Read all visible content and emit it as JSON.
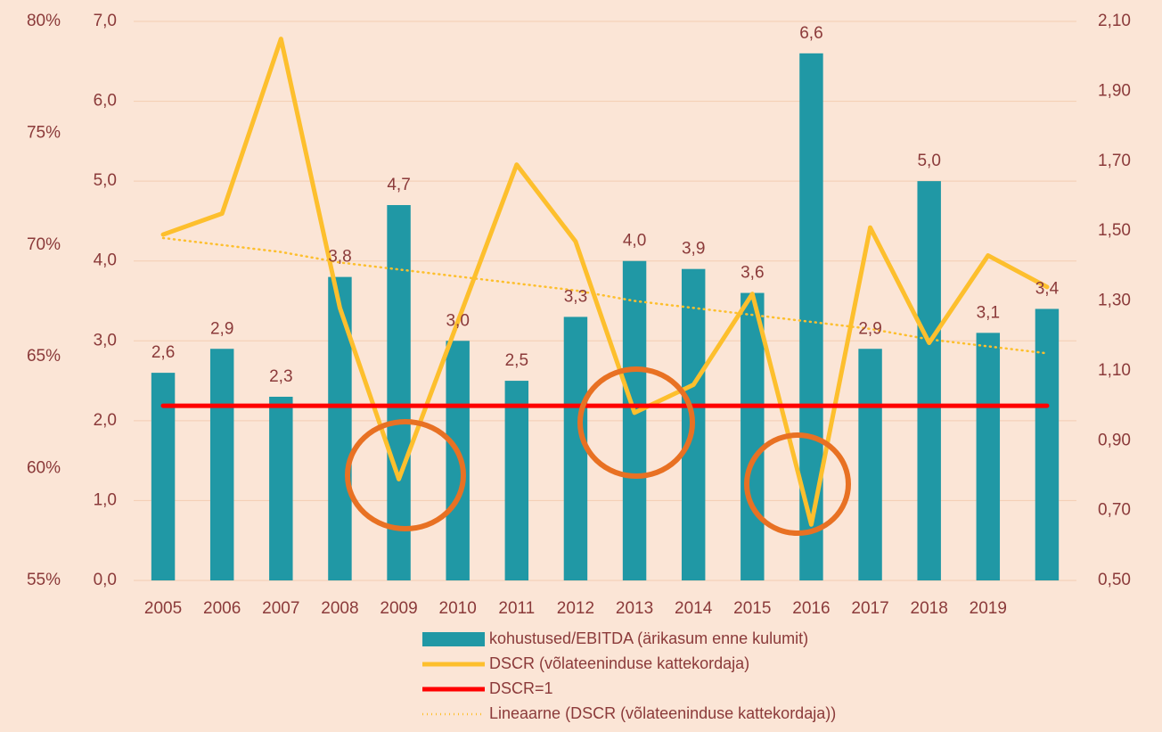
{
  "chart_data": {
    "type": "bar",
    "categories": [
      "2005",
      "2006",
      "2007",
      "2008",
      "2009",
      "2010",
      "2011",
      "2012",
      "2013",
      "2014",
      "2015",
      "2016",
      "2017",
      "2018",
      "2019",
      null
    ],
    "series": [
      {
        "name": "kohustused/EBITDA (ärikasum enne kulumit)",
        "type": "bar",
        "color": "#2098a5",
        "axis": "y",
        "values": [
          2.6,
          2.9,
          2.3,
          3.8,
          4.7,
          3.0,
          2.5,
          3.3,
          4.0,
          3.9,
          3.6,
          6.6,
          2.9,
          5.0,
          3.1,
          3.4
        ],
        "value_labels": [
          "2,6",
          "2,9",
          "2,3",
          "3,8",
          "4,7",
          "3,0",
          "2,5",
          "3,3",
          "4,0",
          "3,9",
          "3,6",
          "6,6",
          "2,9",
          "5,0",
          "3,1",
          "3,4"
        ]
      },
      {
        "name": "DSCR (võlateeninduse kattekordaja)",
        "type": "line",
        "style": "solid",
        "color": "#fdbf2d",
        "axis": "y2",
        "values": [
          1.49,
          1.55,
          2.05,
          1.28,
          0.79,
          1.24,
          1.69,
          1.47,
          0.98,
          1.06,
          1.32,
          0.66,
          1.51,
          1.18,
          1.43,
          1.34
        ]
      },
      {
        "name": "DSCR=1",
        "type": "line",
        "style": "solid",
        "color": "#ff0000",
        "axis": "y2",
        "values": [
          1,
          1,
          1,
          1,
          1,
          1,
          1,
          1,
          1,
          1,
          1,
          1,
          1,
          1,
          1,
          1
        ]
      },
      {
        "name": "Lineaarne (DSCR (võlateeninduse kattekordaja))",
        "type": "line",
        "style": "dotted",
        "color": "#fdbf2d",
        "axis": "y2",
        "values": [
          1.48,
          1.46,
          1.44,
          1.41,
          1.39,
          1.37,
          1.35,
          1.33,
          1.3,
          1.28,
          1.26,
          1.24,
          1.22,
          1.19,
          1.17,
          1.15
        ]
      }
    ],
    "ylim": [
      0,
      7
    ],
    "yticks": [
      {
        "value": 0,
        "label": "0,0"
      },
      {
        "value": 1,
        "label": "1,0"
      },
      {
        "value": 2,
        "label": "2,0"
      },
      {
        "value": 3,
        "label": "3,0"
      },
      {
        "value": 4,
        "label": "4,0"
      },
      {
        "value": 5,
        "label": "5,0"
      },
      {
        "value": 6,
        "label": "6,0"
      },
      {
        "value": 7,
        "label": "7,0"
      }
    ],
    "y2lim": [
      0.5,
      2.1
    ],
    "y2ticks": [
      {
        "value": 0.5,
        "label": "0,50"
      },
      {
        "value": 0.7,
        "label": "0,70"
      },
      {
        "value": 0.9,
        "label": "0,90"
      },
      {
        "value": 1.1,
        "label": "1,10"
      },
      {
        "value": 1.3,
        "label": "1,30"
      },
      {
        "value": 1.5,
        "label": "1,50"
      },
      {
        "value": 1.7,
        "label": "1,70"
      },
      {
        "value": 1.9,
        "label": "1,90"
      },
      {
        "value": 2.1,
        "label": "2,10"
      }
    ],
    "y3lim": [
      55,
      80
    ],
    "y3ticks": [
      {
        "value": 55,
        "label": "55%"
      },
      {
        "value": 60,
        "label": "60%"
      },
      {
        "value": 65,
        "label": "65%"
      },
      {
        "value": 70,
        "label": "70%"
      },
      {
        "value": 75,
        "label": "75%"
      },
      {
        "value": 80,
        "label": "80%"
      }
    ],
    "grid": true
  }
}
